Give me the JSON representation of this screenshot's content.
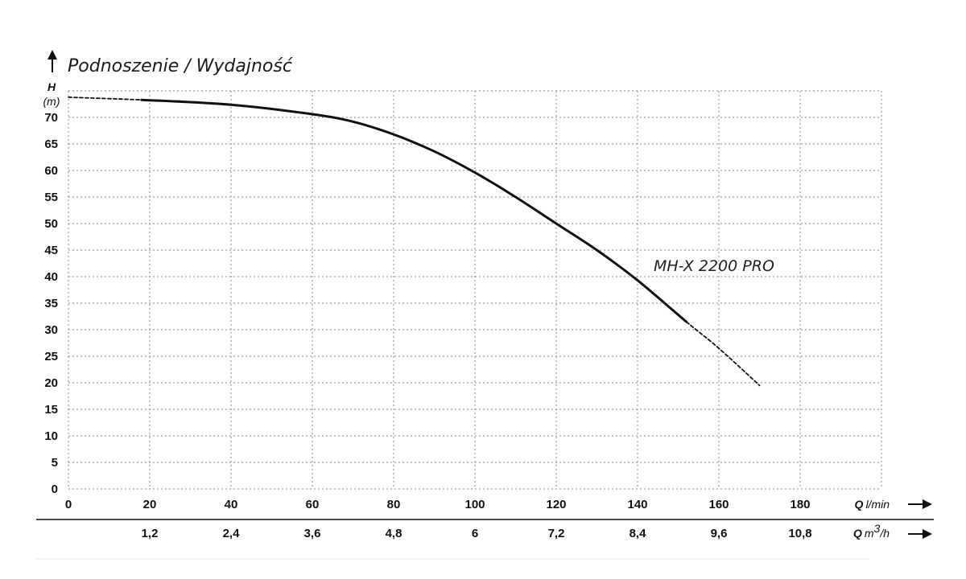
{
  "chart_data": {
    "type": "line",
    "title": "Podnoszenie / Wydajność",
    "y_axis": {
      "symbol": "H",
      "unit": "(m)",
      "ylim": [
        0,
        75
      ],
      "ticks": [
        0,
        5,
        10,
        15,
        20,
        25,
        30,
        35,
        40,
        45,
        50,
        55,
        60,
        65,
        70
      ]
    },
    "x_axis_primary": {
      "symbol": "Q",
      "unit": "l/min",
      "xlim": [
        0,
        200
      ],
      "ticks": [
        0,
        20,
        40,
        60,
        80,
        100,
        120,
        140,
        160,
        180
      ],
      "tick_labels": [
        "0",
        "20",
        "40",
        "60",
        "80",
        "100",
        "120",
        "140",
        "160",
        "180"
      ]
    },
    "x_axis_secondary": {
      "symbol": "Q",
      "unit_prefix": "m",
      "unit_sup": "3",
      "unit_suffix": "/h",
      "ticks": [
        20,
        40,
        60,
        80,
        100,
        120,
        140,
        160,
        180
      ],
      "tick_labels": [
        "1,2",
        "2,4",
        "3,6",
        "4,8",
        "6",
        "7,2",
        "8,4",
        "9,6",
        "10,8"
      ]
    },
    "grid": true,
    "series": [
      {
        "name": "MH-X 2200 PRO",
        "color": "#111111",
        "points": [
          {
            "x": 0,
            "y": 73.8
          },
          {
            "x": 18,
            "y": 73.3
          },
          {
            "x": 40,
            "y": 72.4
          },
          {
            "x": 60,
            "y": 70.6
          },
          {
            "x": 70,
            "y": 69.2
          },
          {
            "x": 80,
            "y": 66.8
          },
          {
            "x": 90,
            "y": 63.6
          },
          {
            "x": 100,
            "y": 59.6
          },
          {
            "x": 110,
            "y": 55.0
          },
          {
            "x": 120,
            "y": 50.0
          },
          {
            "x": 130,
            "y": 45.0
          },
          {
            "x": 140,
            "y": 39.3
          },
          {
            "x": 152,
            "y": 31.5
          },
          {
            "x": 160,
            "y": 26.5
          },
          {
            "x": 170,
            "y": 19.5
          }
        ],
        "dashed_ranges": [
          [
            0,
            18
          ],
          [
            152,
            170
          ]
        ]
      }
    ]
  }
}
